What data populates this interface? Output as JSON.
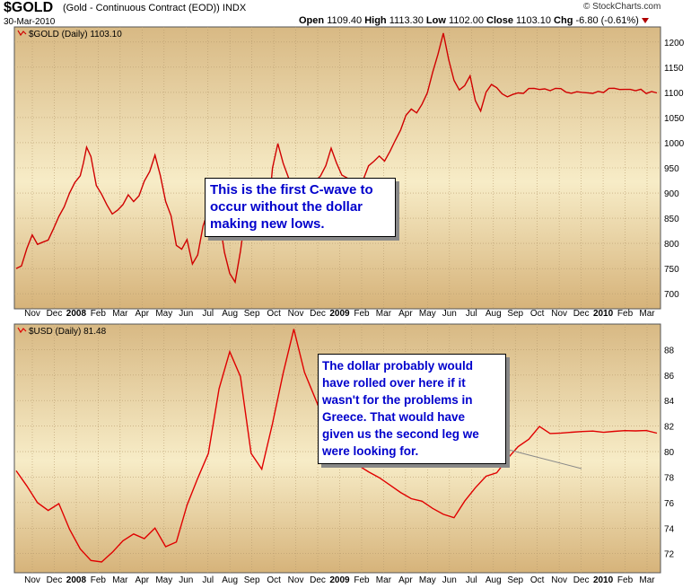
{
  "header": {
    "symbol": "$GOLD",
    "description": "(Gold - Continuous Contract (EOD))",
    "exchange": "INDX",
    "date": "30-Mar-2010",
    "open_label": "Open",
    "open": "1109.40",
    "high_label": "High",
    "high": "1113.30",
    "low_label": "Low",
    "low": "1102.00",
    "close_label": "Close",
    "close": "1103.10",
    "chg_label": "Chg",
    "chg": "-6.80 (-0.61%)",
    "brand": "© StockCharts.com"
  },
  "annotations": {
    "gold_note": "This is the first C-wave to occur without the dollar making new lows.",
    "usd_note": "The dollar probably would have rolled over here if it wasn't for the problems in Greece. That would have given us the second leg we were looking for."
  },
  "chart_data": [
    {
      "type": "line",
      "legend": "$GOLD (Daily) 1103.10",
      "color": "#d00000",
      "ylim": [
        670,
        1230
      ],
      "yticks": [
        700,
        750,
        800,
        850,
        900,
        950,
        1000,
        1050,
        1100,
        1150,
        1200
      ],
      "xticks": [
        "Nov",
        "Dec",
        "2008",
        "Feb",
        "Mar",
        "Apr",
        "May",
        "Jun",
        "Jul",
        "Aug",
        "Sep",
        "Oct",
        "Nov",
        "Dec",
        "2009",
        "Feb",
        "Mar",
        "Apr",
        "May",
        "Jun",
        "Jul",
        "Aug",
        "Sep",
        "Oct",
        "Nov",
        "Dec",
        "2010",
        "Feb",
        "Mar"
      ],
      "x": [
        0,
        5,
        10,
        15,
        20,
        25,
        30,
        35,
        40,
        45,
        50,
        55,
        60,
        63,
        66,
        70,
        75,
        80,
        85,
        90,
        95,
        100,
        105,
        110,
        115,
        120,
        125,
        130,
        135,
        140,
        145,
        150,
        155,
        160,
        165,
        170,
        175,
        180,
        185,
        190,
        195,
        200,
        205,
        210,
        215,
        220,
        225,
        230,
        235,
        240,
        245,
        250,
        255,
        260,
        265,
        270,
        275,
        280,
        285,
        290,
        295,
        300,
        305,
        310,
        315,
        320,
        325,
        330,
        335,
        340,
        345,
        350,
        355,
        360,
        365,
        370,
        375,
        380,
        385,
        390,
        395,
        400,
        405,
        410,
        415,
        420,
        425,
        430,
        435,
        440,
        445,
        450,
        455,
        460,
        465,
        470,
        475,
        480,
        485,
        490,
        495,
        500,
        505,
        510,
        515,
        520,
        525,
        530,
        535,
        540,
        545,
        550,
        555,
        560,
        565,
        570,
        575,
        580,
        585,
        590,
        595,
        600
      ],
      "y": [
        750,
        760,
        790,
        820,
        800,
        805,
        810,
        830,
        850,
        870,
        900,
        920,
        930,
        960,
        990,
        975,
        920,
        900,
        880,
        860,
        870,
        880,
        900,
        880,
        890,
        920,
        940,
        970,
        930,
        880,
        860,
        800,
        790,
        810,
        760,
        780,
        840,
        870,
        900,
        850,
        780,
        740,
        720,
        780,
        860,
        870,
        830,
        810,
        830,
        950,
        1000,
        960,
        930,
        900,
        880,
        870,
        890,
        920,
        930,
        950,
        990,
        960,
        940,
        930,
        920,
        900,
        930,
        950,
        960,
        970,
        960,
        980,
        1000,
        1020,
        1050,
        1070,
        1060,
        1080,
        1100,
        1140,
        1180,
        1220,
        1160,
        1120,
        1100,
        1110,
        1130,
        1080,
        1060,
        1100,
        1120,
        1110,
        1100,
        1095,
        1100,
        1103,
        1103,
        1103,
        1103,
        1103,
        1103,
        1103,
        1103,
        1103,
        1103,
        1103,
        1103,
        1103,
        1103,
        1103,
        1103,
        1103,
        1103,
        1103,
        1103,
        1103,
        1103,
        1103,
        1103,
        1103,
        1103,
        1103
      ]
    },
    {
      "type": "line",
      "legend": "$USD (Daily) 81.48",
      "color": "#e00000",
      "ylim": [
        70.5,
        90
      ],
      "yticks": [
        72,
        74,
        76,
        78,
        80,
        82,
        84,
        86,
        88
      ],
      "xticks": [
        "Nov",
        "Dec",
        "2008",
        "Feb",
        "Mar",
        "Apr",
        "May",
        "Jun",
        "Jul",
        "Aug",
        "Sep",
        "Oct",
        "Nov",
        "Dec",
        "2009",
        "Feb",
        "Mar",
        "Apr",
        "May",
        "Jun",
        "Jul",
        "Aug",
        "Sep",
        "Oct",
        "Nov",
        "Dec",
        "2010",
        "Feb",
        "Mar"
      ],
      "x": [
        0,
        10,
        20,
        30,
        40,
        50,
        60,
        70,
        80,
        90,
        100,
        110,
        120,
        130,
        140,
        150,
        160,
        170,
        180,
        190,
        200,
        210,
        220,
        230,
        240,
        250,
        260,
        270,
        280,
        290,
        300,
        310,
        320,
        330,
        340,
        350,
        360,
        370,
        380,
        390,
        400,
        410,
        420,
        430,
        440,
        450,
        460,
        470,
        480,
        490,
        500,
        510,
        520,
        530,
        540,
        550,
        560,
        570,
        580,
        590,
        600
      ],
      "y": [
        78.5,
        77.5,
        76,
        75.5,
        76,
        74,
        72.5,
        71.5,
        71.2,
        72,
        73,
        73.5,
        73,
        74,
        72.5,
        73,
        76,
        78,
        80,
        85,
        88,
        86,
        80,
        78.5,
        82,
        86,
        89.5,
        86,
        84,
        82,
        80,
        79.5,
        79,
        78.5,
        78,
        77.5,
        77,
        76.5,
        76,
        75.5,
        75,
        74.8,
        76,
        77,
        78,
        78.5,
        79.5,
        80.5,
        81,
        82,
        81.48,
        81.48,
        81.48,
        81.48,
        81.48,
        81.48,
        81.48,
        81.48,
        81.48,
        81.48,
        81.48
      ]
    }
  ]
}
